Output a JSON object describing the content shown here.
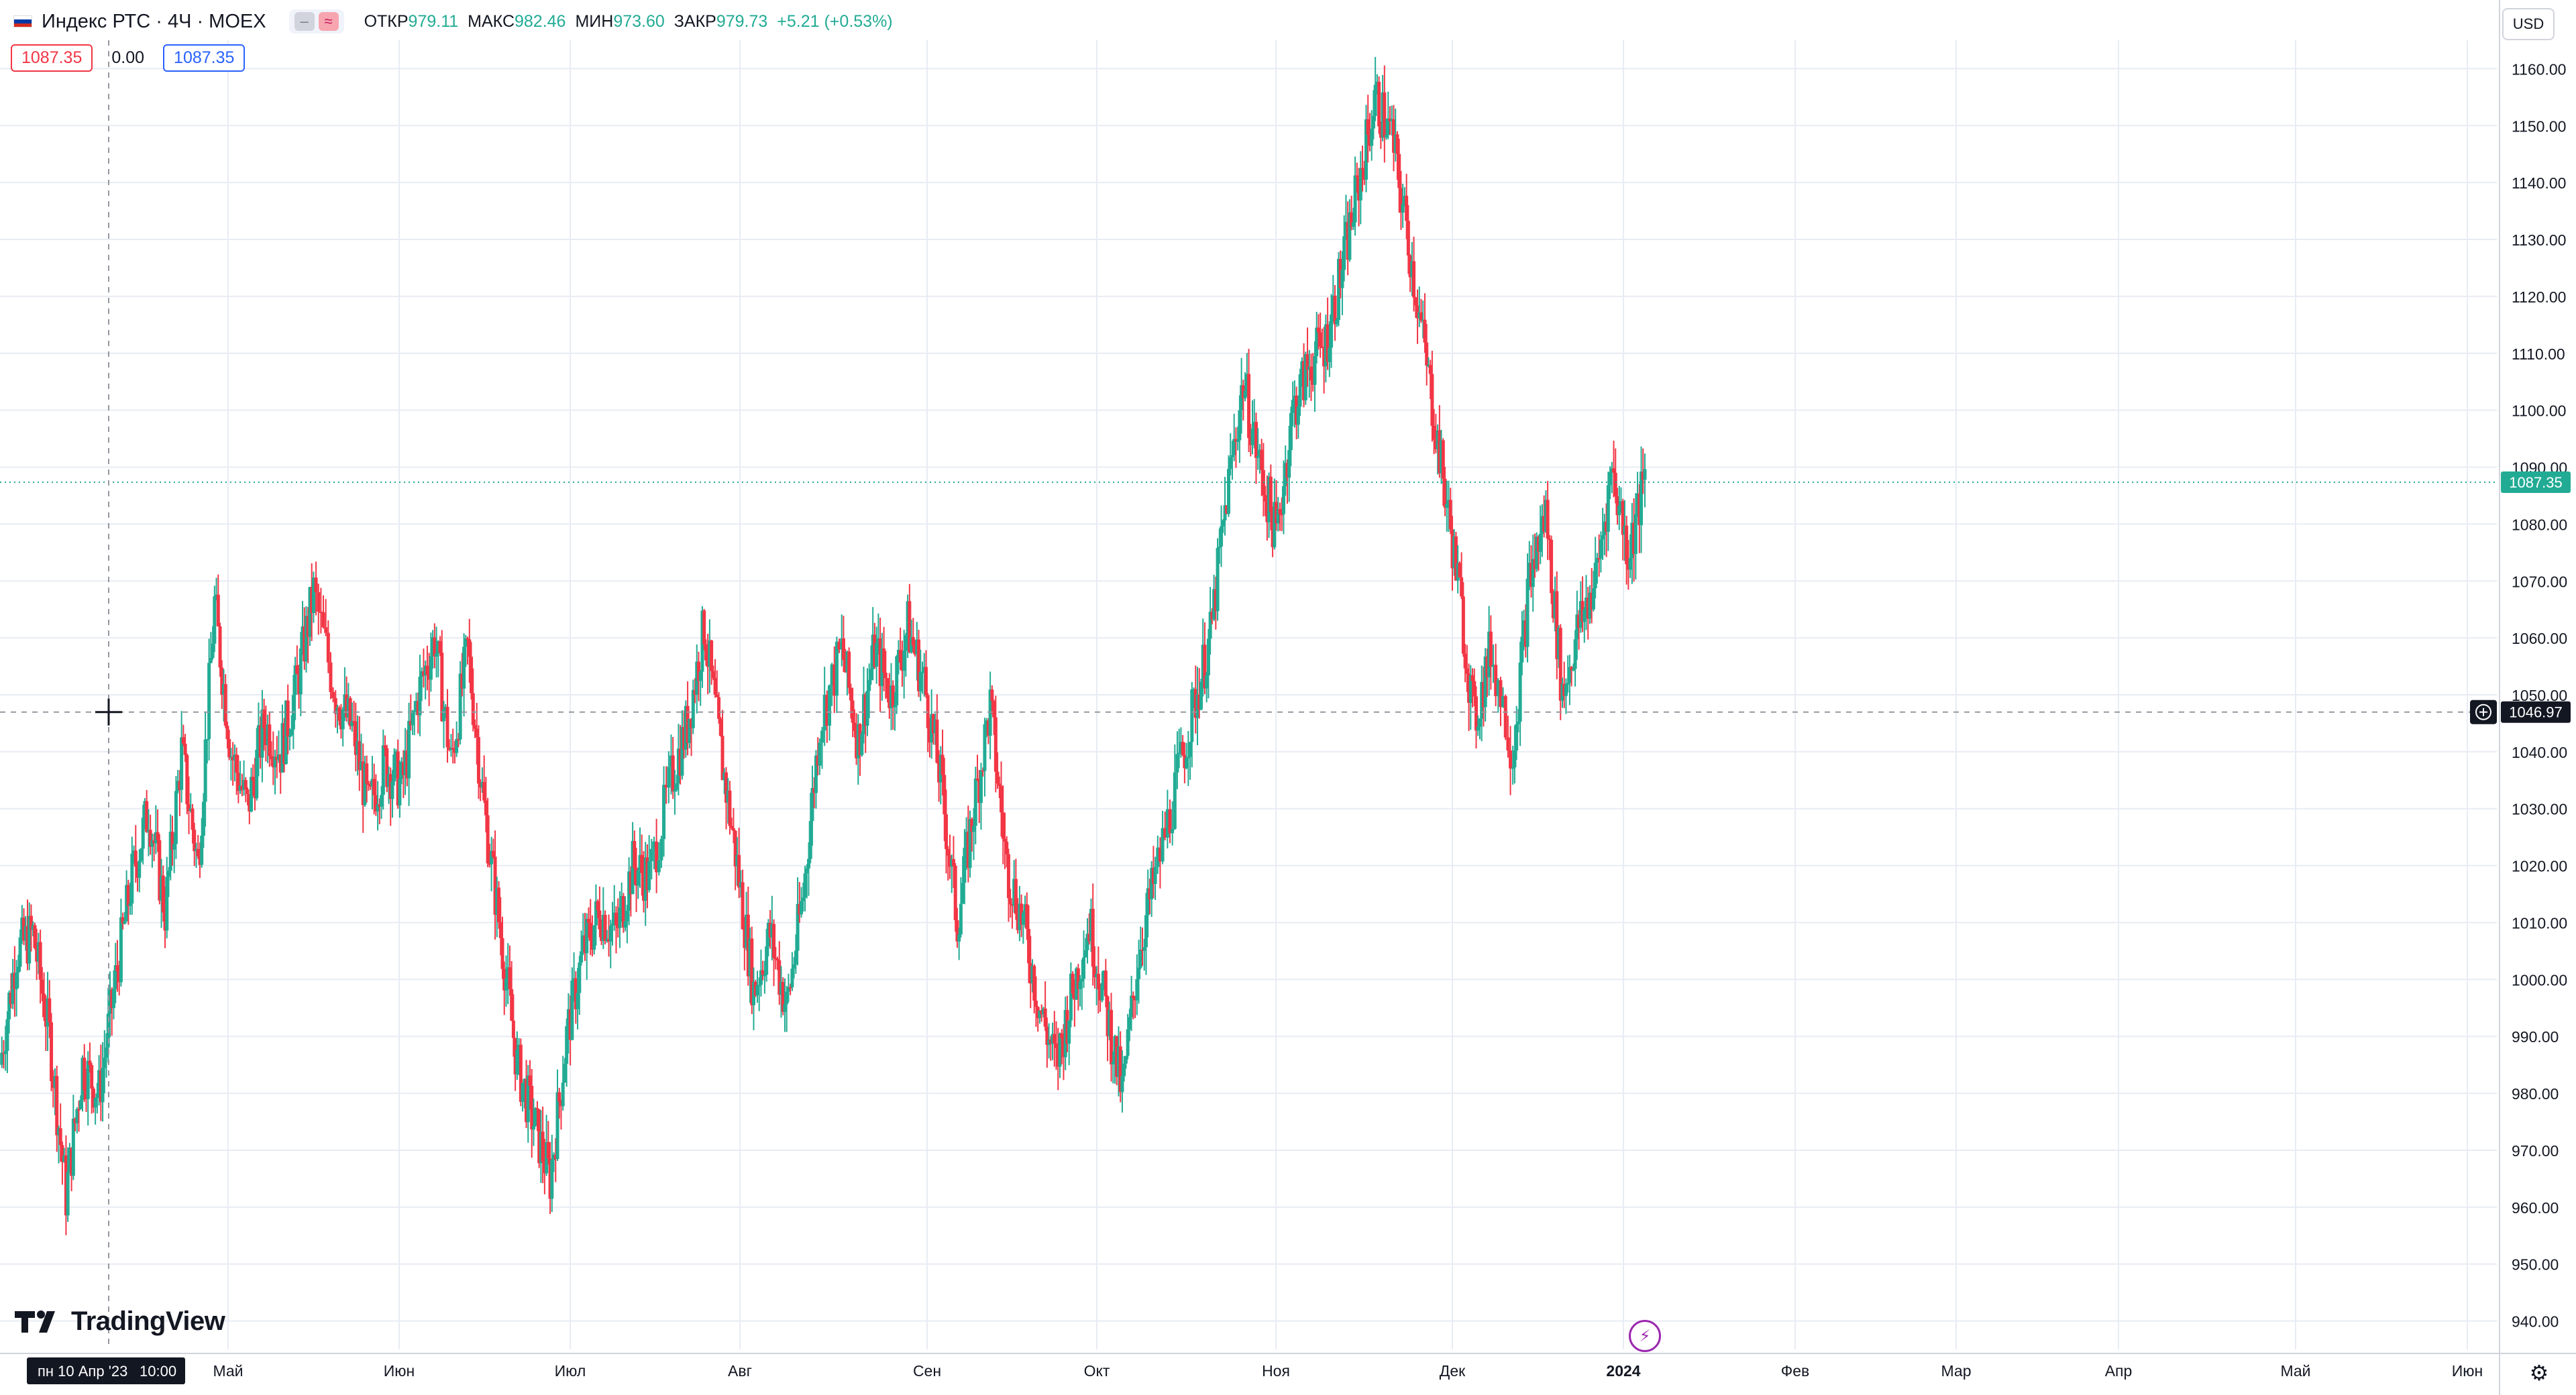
{
  "header": {
    "title": "Индекс РТС · 4Ч · MOEX",
    "ohlc": [
      {
        "label": "ОТКР",
        "value": "979.11"
      },
      {
        "label": "МАКС",
        "value": "982.46"
      },
      {
        "label": "МИН",
        "value": "973.60"
      },
      {
        "label": "ЗАКР",
        "value": "979.73"
      },
      {
        "label": "",
        "value": "+5.21 (+0.53%)"
      }
    ],
    "pill_a": "‒",
    "pill_b": "≈"
  },
  "order": {
    "sell_price": "1087.35",
    "spread": "0.00",
    "buy_price": "1087.35"
  },
  "currency": "USD",
  "crosshair": {
    "price_label": "1046.97",
    "date_label": "пн 10 Апр '23",
    "time_label": "10:00"
  },
  "last_price_label": "1087.35",
  "brand": "TradingView",
  "colors": {
    "up": "#22ab94",
    "down": "#f23645",
    "grid": "#e8ecf3",
    "axis_text": "#131722",
    "crosshair": "#9598a1",
    "last_price": "#22ab94"
  },
  "icons": {
    "flash": "flash-icon",
    "settings": "gear-icon",
    "add_alert": "plus-circle-icon"
  },
  "chart_data": {
    "type": "candlestick",
    "title": "Индекс РТС · 4Ч · MOEX",
    "ylim": [
      935,
      1165
    ],
    "y_ticks": [
      940,
      950,
      960,
      970,
      980,
      990,
      1000,
      1010,
      1020,
      1030,
      1040,
      1050,
      1060,
      1070,
      1080,
      1090,
      1100,
      1110,
      1120,
      1130,
      1140,
      1150,
      1160
    ],
    "y_tick_labels": [
      "940.00",
      "950.00",
      "960.00",
      "970.00",
      "980.00",
      "990.00",
      "1000.00",
      "1010.00",
      "1020.00",
      "1030.00",
      "1040.00",
      "1050.00",
      "1060.00",
      "1070.00",
      "1080.00",
      "1090.00",
      "1100.00",
      "1110.00",
      "1120.00",
      "1130.00",
      "1140.00",
      "1150.00",
      "1160.00"
    ],
    "x_axis": [
      "Май",
      "Июн",
      "Июл",
      "Авг",
      "Сен",
      "Окт",
      "Ноя",
      "Дек",
      "2024",
      "Фев",
      "Мар",
      "Апр",
      "Май",
      "Июн"
    ],
    "x_axis_bold": [
      false,
      false,
      false,
      false,
      false,
      false,
      false,
      false,
      true,
      false,
      false,
      false,
      false,
      false
    ],
    "grid": true,
    "last_price": 1087.35,
    "crosshair_price": 1046.97,
    "ohlc_close_path": [
      {
        "x": "2023-04-01",
        "close": 985
      },
      {
        "x": "2023-04-04",
        "close": 1005
      },
      {
        "x": "2023-04-07",
        "close": 1008
      },
      {
        "x": "2023-04-10",
        "close": 990
      },
      {
        "x": "2023-04-13",
        "close": 962
      },
      {
        "x": "2023-04-16",
        "close": 985
      },
      {
        "x": "2023-04-19",
        "close": 980
      },
      {
        "x": "2023-04-22",
        "close": 1000
      },
      {
        "x": "2023-04-25",
        "close": 1018
      },
      {
        "x": "2023-04-28",
        "close": 1030
      },
      {
        "x": "2023-05-01",
        "close": 1012
      },
      {
        "x": "2023-05-04",
        "close": 1040
      },
      {
        "x": "2023-05-07",
        "close": 1020
      },
      {
        "x": "2023-05-10",
        "close": 1066
      },
      {
        "x": "2023-05-13",
        "close": 1040
      },
      {
        "x": "2023-05-16",
        "close": 1030
      },
      {
        "x": "2023-05-19",
        "close": 1045
      },
      {
        "x": "2023-05-22",
        "close": 1040
      },
      {
        "x": "2023-05-25",
        "close": 1052
      },
      {
        "x": "2023-05-28",
        "close": 1068
      },
      {
        "x": "2023-06-01",
        "close": 1050
      },
      {
        "x": "2023-06-04",
        "close": 1044
      },
      {
        "x": "2023-06-07",
        "close": 1030
      },
      {
        "x": "2023-06-10",
        "close": 1038
      },
      {
        "x": "2023-06-13",
        "close": 1034
      },
      {
        "x": "2023-06-16",
        "close": 1050
      },
      {
        "x": "2023-06-19",
        "close": 1060
      },
      {
        "x": "2023-06-22",
        "close": 1038
      },
      {
        "x": "2023-06-25",
        "close": 1058
      },
      {
        "x": "2023-06-28",
        "close": 1030
      },
      {
        "x": "2023-07-01",
        "close": 1008
      },
      {
        "x": "2023-07-04",
        "close": 985
      },
      {
        "x": "2023-07-07",
        "close": 975
      },
      {
        "x": "2023-07-10",
        "close": 965
      },
      {
        "x": "2023-07-13",
        "close": 990
      },
      {
        "x": "2023-07-16",
        "close": 1005
      },
      {
        "x": "2023-07-19",
        "close": 1012
      },
      {
        "x": "2023-07-22",
        "close": 1008
      },
      {
        "x": "2023-07-25",
        "close": 1020
      },
      {
        "x": "2023-07-28",
        "close": 1018
      },
      {
        "x": "2023-08-01",
        "close": 1035
      },
      {
        "x": "2023-08-04",
        "close": 1045
      },
      {
        "x": "2023-08-07",
        "close": 1062
      },
      {
        "x": "2023-08-10",
        "close": 1040
      },
      {
        "x": "2023-08-13",
        "close": 1020
      },
      {
        "x": "2023-08-16",
        "close": 998
      },
      {
        "x": "2023-08-19",
        "close": 1008
      },
      {
        "x": "2023-08-22",
        "close": 995
      },
      {
        "x": "2023-08-25",
        "close": 1015
      },
      {
        "x": "2023-08-28",
        "close": 1045
      },
      {
        "x": "2023-09-01",
        "close": 1058
      },
      {
        "x": "2023-09-04",
        "close": 1042
      },
      {
        "x": "2023-09-07",
        "close": 1058
      },
      {
        "x": "2023-09-10",
        "close": 1050
      },
      {
        "x": "2023-09-13",
        "close": 1062
      },
      {
        "x": "2023-09-16",
        "close": 1052
      },
      {
        "x": "2023-09-19",
        "close": 1035
      },
      {
        "x": "2023-09-22",
        "close": 1010
      },
      {
        "x": "2023-09-25",
        "close": 1030
      },
      {
        "x": "2023-09-28",
        "close": 1048
      },
      {
        "x": "2023-10-01",
        "close": 1020
      },
      {
        "x": "2023-10-04",
        "close": 1010
      },
      {
        "x": "2023-10-07",
        "close": 995
      },
      {
        "x": "2023-10-10",
        "close": 985
      },
      {
        "x": "2023-10-13",
        "close": 998
      },
      {
        "x": "2023-10-16",
        "close": 1010
      },
      {
        "x": "2023-10-19",
        "close": 995
      },
      {
        "x": "2023-10-22",
        "close": 980
      },
      {
        "x": "2023-10-25",
        "close": 1005
      },
      {
        "x": "2023-10-28",
        "close": 1018
      },
      {
        "x": "2023-11-01",
        "close": 1035
      },
      {
        "x": "2023-11-04",
        "close": 1048
      },
      {
        "x": "2023-11-07",
        "close": 1060
      },
      {
        "x": "2023-11-10",
        "close": 1085
      },
      {
        "x": "2023-11-13",
        "close": 1105
      },
      {
        "x": "2023-11-16",
        "close": 1090
      },
      {
        "x": "2023-11-19",
        "close": 1078
      },
      {
        "x": "2023-11-22",
        "close": 1100
      },
      {
        "x": "2023-11-25",
        "close": 1108
      },
      {
        "x": "2023-11-28",
        "close": 1112
      },
      {
        "x": "2023-12-01",
        "close": 1125
      },
      {
        "x": "2023-12-04",
        "close": 1140
      },
      {
        "x": "2023-12-07",
        "close": 1155
      },
      {
        "x": "2023-12-10",
        "close": 1148
      },
      {
        "x": "2023-12-13",
        "close": 1130
      },
      {
        "x": "2023-12-16",
        "close": 1110
      },
      {
        "x": "2023-12-19",
        "close": 1090
      },
      {
        "x": "2023-12-22",
        "close": 1070
      },
      {
        "x": "2023-12-25",
        "close": 1045
      },
      {
        "x": "2023-12-28",
        "close": 1058
      },
      {
        "x": "2024-01-01",
        "close": 1040
      },
      {
        "x": "2024-01-04",
        "close": 1070
      },
      {
        "x": "2024-01-07",
        "close": 1082
      },
      {
        "x": "2024-01-10",
        "close": 1050
      },
      {
        "x": "2024-01-13",
        "close": 1062
      },
      {
        "x": "2024-01-16",
        "close": 1070
      },
      {
        "x": "2024-01-19",
        "close": 1090
      },
      {
        "x": "2024-01-22",
        "close": 1075
      },
      {
        "x": "2024-01-25",
        "close": 1087.35
      }
    ]
  }
}
